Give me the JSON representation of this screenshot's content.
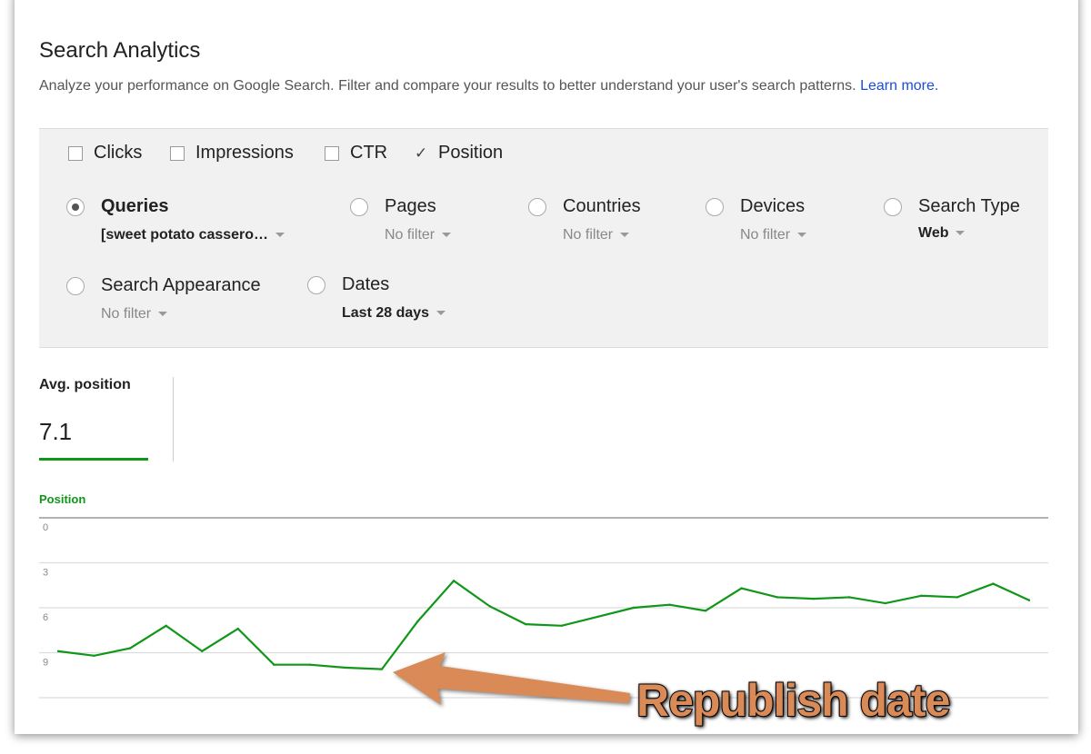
{
  "header": {
    "title": "Search Analytics",
    "description": "Analyze your performance on Google Search. Filter and compare your results to better understand your user's search patterns.",
    "learn_more": "Learn more."
  },
  "metrics": [
    {
      "label": "Clicks",
      "checked": false
    },
    {
      "label": "Impressions",
      "checked": false
    },
    {
      "label": "CTR",
      "checked": false
    },
    {
      "label": "Position",
      "checked": true
    }
  ],
  "filters": {
    "queries": {
      "label": "Queries",
      "value": "[sweet potato cassero…",
      "selected": true
    },
    "pages": {
      "label": "Pages",
      "value": "No filter"
    },
    "countries": {
      "label": "Countries",
      "value": "No filter"
    },
    "devices": {
      "label": "Devices",
      "value": "No filter"
    },
    "search_type": {
      "label": "Search Type",
      "value": "Web"
    },
    "search_appearance": {
      "label": "Search Appearance",
      "value": "No filter"
    },
    "dates": {
      "label": "Dates",
      "value": "Last 28 days"
    }
  },
  "summary": {
    "label": "Avg. position",
    "value": "7.1",
    "color": "#109618"
  },
  "chart_data": {
    "type": "line",
    "series": [
      {
        "name": "Position",
        "color": "#109618",
        "values": [
          8.9,
          9.2,
          8.7,
          7.2,
          8.9,
          7.4,
          9.8,
          9.8,
          10.0,
          10.1,
          6.9,
          4.2,
          5.9,
          7.1,
          7.2,
          6.6,
          6.0,
          5.8,
          6.2,
          4.7,
          5.3,
          5.4,
          5.3,
          5.7,
          5.2,
          5.3,
          4.4,
          5.5
        ]
      }
    ],
    "y_ticks": [
      "0",
      "3",
      "6",
      "9"
    ],
    "ylim": [
      0,
      12
    ],
    "y_inverted": true,
    "grid": true
  },
  "annotation": {
    "text": "Republish date",
    "color": "#d98a56"
  }
}
